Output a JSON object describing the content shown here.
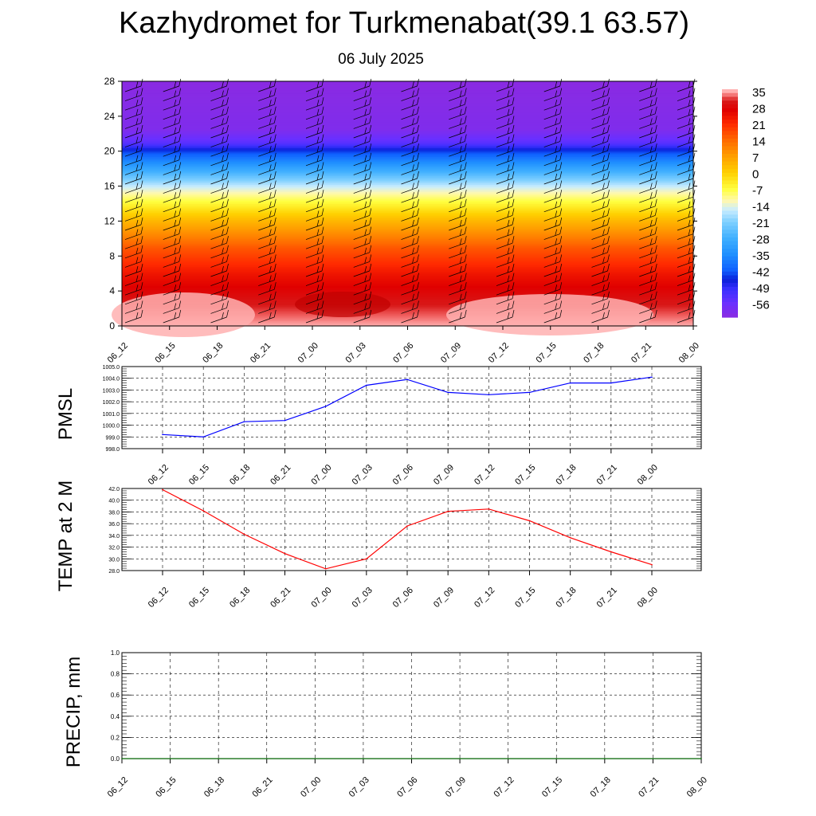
{
  "header": {
    "title": "Kazhydromet for Turkmenabat(39.1 63.57)",
    "subtitle": "06 July 2025"
  },
  "chart_data": [
    {
      "type": "heatmap",
      "name": "cross-section",
      "x_ticks": [
        "06_12",
        "06_15",
        "06_18",
        "06_21",
        "07_00",
        "07_03",
        "07_06",
        "07_09",
        "07_12",
        "07_15",
        "07_18",
        "07_21",
        "08_00"
      ],
      "y_ticks": [
        0,
        4,
        8,
        12,
        16,
        20,
        24,
        28
      ],
      "ylim": [
        0,
        28
      ],
      "colorbar_labels": [
        "35",
        "28",
        "21",
        "14",
        "7",
        "0",
        "-7",
        "-14",
        "-21",
        "-28",
        "-35",
        "-42",
        "-49",
        "-56"
      ],
      "temperature_profile": [
        {
          "level": 0,
          "value": 35
        },
        {
          "level": 3,
          "value": 30
        },
        {
          "level": 6,
          "value": 24
        },
        {
          "level": 9,
          "value": 16
        },
        {
          "level": 12,
          "value": 4
        },
        {
          "level": 14.5,
          "value": -8
        },
        {
          "level": 16,
          "value": -16
        },
        {
          "level": 18,
          "value": -30
        },
        {
          "level": 20,
          "value": -44
        },
        {
          "level": 21,
          "value": -54
        },
        {
          "level": 22.5,
          "value": -60
        },
        {
          "level": 28,
          "value": -62
        }
      ],
      "has_wind_barbs": true,
      "colors": [
        "#ffb4b4",
        "#f08080",
        "#d80000",
        "#ff2000",
        "#ff6000",
        "#ffa000",
        "#ffe000",
        "#ffff90",
        "#c8f0ff",
        "#60c8ff",
        "#20a0ff",
        "#0050ff",
        "#2020e0",
        "#8020ff"
      ]
    },
    {
      "type": "line",
      "ylabel": "PMSL",
      "x": [
        "06_12",
        "06_15",
        "06_18",
        "06_21",
        "07_00",
        "07_03",
        "07_06",
        "07_09",
        "07_12",
        "07_15",
        "07_18",
        "07_21",
        "08_00"
      ],
      "values": [
        999.2,
        999.0,
        1000.3,
        1000.4,
        1001.6,
        1003.4,
        1003.9,
        1002.8,
        1002.6,
        1002.8,
        1003.6,
        1003.6,
        1004.1
      ],
      "ylim": [
        998.0,
        1005.0
      ],
      "y_ticks": [
        "998.0",
        "999.0",
        "1000.0",
        "1001.0",
        "1002.0",
        "1003.0",
        "1004.0",
        "1005.0"
      ],
      "color": "#0000ff",
      "grid": true
    },
    {
      "type": "line",
      "ylabel": "TEMP at 2 M",
      "x": [
        "06_12",
        "06_15",
        "06_18",
        "06_21",
        "07_00",
        "07_03",
        "07_06",
        "07_09",
        "07_12",
        "07_15",
        "07_18",
        "07_21",
        "08_00"
      ],
      "values": [
        41.8,
        38.2,
        34.2,
        30.9,
        28.3,
        30.0,
        35.6,
        38.1,
        38.5,
        36.5,
        33.6,
        31.2,
        29.0
      ],
      "ylim": [
        28.0,
        42.0
      ],
      "y_ticks": [
        "28.0",
        "30.0",
        "32.0",
        "34.0",
        "36.0",
        "38.0",
        "40.0",
        "42.0"
      ],
      "color": "#ff0000",
      "grid": true
    },
    {
      "type": "line",
      "ylabel": "PRECIP, mm",
      "x": [
        "06_12",
        "06_15",
        "06_18",
        "06_21",
        "07_00",
        "07_03",
        "07_06",
        "07_09",
        "07_12",
        "07_15",
        "07_18",
        "07_21",
        "08_00"
      ],
      "values": [
        0,
        0,
        0,
        0,
        0,
        0,
        0,
        0,
        0,
        0,
        0,
        0,
        0
      ],
      "ylim": [
        0.0,
        1.0
      ],
      "y_ticks": [
        "0.0",
        "0.2",
        "0.4",
        "0.6",
        "0.8",
        "1.0"
      ],
      "color": "#006400",
      "grid": true
    }
  ]
}
